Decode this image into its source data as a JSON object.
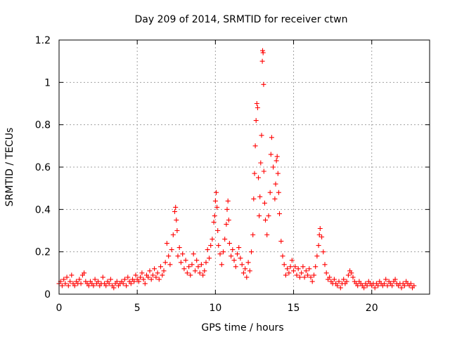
{
  "chart_data": {
    "type": "scatter",
    "title": "Day 209 of 2014, SRMTID for receiver ctwn",
    "xlabel": "GPS time / hours",
    "ylabel": "SRMTID / TECUs",
    "xlim": [
      0,
      23.7
    ],
    "ylim": [
      0,
      1.2
    ],
    "xticks": [
      0,
      5,
      10,
      15,
      20
    ],
    "xtick_labels": [
      "0",
      "5",
      "10",
      "15",
      "20"
    ],
    "yticks": [
      0,
      0.2,
      0.4,
      0.6,
      0.8,
      1.0,
      1.2
    ],
    "ytick_labels": [
      "0",
      "0.2",
      "0.4",
      "0.6",
      "0.8",
      "1",
      "1.2"
    ],
    "grid": true,
    "marker": "+",
    "series": [
      {
        "name": "SRMTID",
        "color": "#ff0000",
        "points": [
          [
            0.0,
            0.05
          ],
          [
            0.1,
            0.06
          ],
          [
            0.2,
            0.04
          ],
          [
            0.3,
            0.07
          ],
          [
            0.4,
            0.05
          ],
          [
            0.5,
            0.08
          ],
          [
            0.6,
            0.04
          ],
          [
            0.7,
            0.06
          ],
          [
            0.8,
            0.09
          ],
          [
            0.9,
            0.05
          ],
          [
            1.0,
            0.04
          ],
          [
            1.1,
            0.06
          ],
          [
            1.2,
            0.05
          ],
          [
            1.3,
            0.07
          ],
          [
            1.4,
            0.05
          ],
          [
            1.5,
            0.09
          ],
          [
            1.6,
            0.1
          ],
          [
            1.7,
            0.06
          ],
          [
            1.8,
            0.05
          ],
          [
            1.9,
            0.04
          ],
          [
            2.0,
            0.06
          ],
          [
            2.1,
            0.05
          ],
          [
            2.2,
            0.04
          ],
          [
            2.3,
            0.07
          ],
          [
            2.4,
            0.05
          ],
          [
            2.5,
            0.06
          ],
          [
            2.6,
            0.04
          ],
          [
            2.7,
            0.05
          ],
          [
            2.8,
            0.08
          ],
          [
            2.9,
            0.05
          ],
          [
            3.0,
            0.04
          ],
          [
            3.1,
            0.06
          ],
          [
            3.2,
            0.05
          ],
          [
            3.3,
            0.07
          ],
          [
            3.4,
            0.04
          ],
          [
            3.5,
            0.03
          ],
          [
            3.6,
            0.05
          ],
          [
            3.7,
            0.06
          ],
          [
            3.8,
            0.04
          ],
          [
            3.9,
            0.05
          ],
          [
            4.0,
            0.06
          ],
          [
            4.1,
            0.05
          ],
          [
            4.2,
            0.07
          ],
          [
            4.3,
            0.04
          ],
          [
            4.4,
            0.08
          ],
          [
            4.5,
            0.06
          ],
          [
            4.6,
            0.05
          ],
          [
            4.7,
            0.07
          ],
          [
            4.8,
            0.06
          ],
          [
            4.9,
            0.09
          ],
          [
            5.0,
            0.07
          ],
          [
            5.1,
            0.06
          ],
          [
            5.2,
            0.08
          ],
          [
            5.3,
            0.1
          ],
          [
            5.4,
            0.07
          ],
          [
            5.5,
            0.05
          ],
          [
            5.6,
            0.09
          ],
          [
            5.7,
            0.08
          ],
          [
            5.8,
            0.11
          ],
          [
            5.9,
            0.07
          ],
          [
            6.0,
            0.09
          ],
          [
            6.1,
            0.12
          ],
          [
            6.2,
            0.08
          ],
          [
            6.3,
            0.1
          ],
          [
            6.4,
            0.07
          ],
          [
            6.5,
            0.13
          ],
          [
            6.6,
            0.09
          ],
          [
            6.7,
            0.11
          ],
          [
            6.8,
            0.15
          ],
          [
            6.9,
            0.24
          ],
          [
            7.0,
            0.18
          ],
          [
            7.1,
            0.14
          ],
          [
            7.2,
            0.21
          ],
          [
            7.3,
            0.28
          ],
          [
            7.4,
            0.39
          ],
          [
            7.45,
            0.41
          ],
          [
            7.5,
            0.35
          ],
          [
            7.55,
            0.3
          ],
          [
            7.6,
            0.18
          ],
          [
            7.7,
            0.22
          ],
          [
            7.8,
            0.15
          ],
          [
            7.9,
            0.19
          ],
          [
            8.0,
            0.12
          ],
          [
            8.1,
            0.16
          ],
          [
            8.2,
            0.1
          ],
          [
            8.3,
            0.13
          ],
          [
            8.4,
            0.09
          ],
          [
            8.5,
            0.14
          ],
          [
            8.6,
            0.19
          ],
          [
            8.7,
            0.11
          ],
          [
            8.8,
            0.16
          ],
          [
            8.9,
            0.13
          ],
          [
            9.0,
            0.1
          ],
          [
            9.1,
            0.14
          ],
          [
            9.2,
            0.09
          ],
          [
            9.3,
            0.11
          ],
          [
            9.4,
            0.15
          ],
          [
            9.5,
            0.21
          ],
          [
            9.6,
            0.17
          ],
          [
            9.7,
            0.23
          ],
          [
            9.8,
            0.26
          ],
          [
            9.9,
            0.34
          ],
          [
            9.95,
            0.37
          ],
          [
            10.0,
            0.44
          ],
          [
            10.05,
            0.48
          ],
          [
            10.1,
            0.41
          ],
          [
            10.15,
            0.3
          ],
          [
            10.2,
            0.23
          ],
          [
            10.3,
            0.19
          ],
          [
            10.4,
            0.14
          ],
          [
            10.5,
            0.2
          ],
          [
            10.6,
            0.26
          ],
          [
            10.7,
            0.33
          ],
          [
            10.75,
            0.4
          ],
          [
            10.8,
            0.44
          ],
          [
            10.85,
            0.35
          ],
          [
            10.9,
            0.24
          ],
          [
            11.0,
            0.18
          ],
          [
            11.1,
            0.21
          ],
          [
            11.2,
            0.16
          ],
          [
            11.3,
            0.13
          ],
          [
            11.4,
            0.19
          ],
          [
            11.5,
            0.22
          ],
          [
            11.6,
            0.17
          ],
          [
            11.7,
            0.14
          ],
          [
            11.8,
            0.1
          ],
          [
            11.9,
            0.12
          ],
          [
            12.0,
            0.08
          ],
          [
            12.1,
            0.15
          ],
          [
            12.2,
            0.11
          ],
          [
            12.3,
            0.2
          ],
          [
            12.4,
            0.28
          ],
          [
            12.45,
            0.45
          ],
          [
            12.5,
            0.57
          ],
          [
            12.55,
            0.7
          ],
          [
            12.6,
            0.82
          ],
          [
            12.65,
            0.9
          ],
          [
            12.7,
            0.88
          ],
          [
            12.75,
            0.55
          ],
          [
            12.8,
            0.37
          ],
          [
            12.85,
            0.46
          ],
          [
            12.9,
            0.62
          ],
          [
            12.95,
            0.75
          ],
          [
            13.0,
            1.1
          ],
          [
            13.02,
            1.15
          ],
          [
            13.05,
            1.14
          ],
          [
            13.08,
            0.99
          ],
          [
            13.1,
            0.58
          ],
          [
            13.15,
            0.43
          ],
          [
            13.2,
            0.35
          ],
          [
            13.3,
            0.28
          ],
          [
            13.4,
            0.37
          ],
          [
            13.5,
            0.48
          ],
          [
            13.55,
            0.66
          ],
          [
            13.6,
            0.74
          ],
          [
            13.7,
            0.6
          ],
          [
            13.8,
            0.45
          ],
          [
            13.85,
            0.52
          ],
          [
            13.9,
            0.63
          ],
          [
            13.95,
            0.65
          ],
          [
            14.0,
            0.57
          ],
          [
            14.05,
            0.48
          ],
          [
            14.1,
            0.38
          ],
          [
            14.2,
            0.25
          ],
          [
            14.3,
            0.18
          ],
          [
            14.4,
            0.14
          ],
          [
            14.5,
            0.09
          ],
          [
            14.6,
            0.12
          ],
          [
            14.7,
            0.1
          ],
          [
            14.8,
            0.13
          ],
          [
            14.9,
            0.16
          ],
          [
            15.0,
            0.11
          ],
          [
            15.1,
            0.13
          ],
          [
            15.2,
            0.09
          ],
          [
            15.3,
            0.12
          ],
          [
            15.4,
            0.08
          ],
          [
            15.5,
            0.1
          ],
          [
            15.6,
            0.13
          ],
          [
            15.7,
            0.08
          ],
          [
            15.8,
            0.11
          ],
          [
            15.9,
            0.09
          ],
          [
            16.0,
            0.12
          ],
          [
            16.1,
            0.08
          ],
          [
            16.2,
            0.06
          ],
          [
            16.3,
            0.09
          ],
          [
            16.4,
            0.13
          ],
          [
            16.5,
            0.18
          ],
          [
            16.6,
            0.23
          ],
          [
            16.65,
            0.28
          ],
          [
            16.7,
            0.31
          ],
          [
            16.8,
            0.27
          ],
          [
            16.9,
            0.2
          ],
          [
            17.0,
            0.14
          ],
          [
            17.1,
            0.1
          ],
          [
            17.2,
            0.07
          ],
          [
            17.3,
            0.08
          ],
          [
            17.4,
            0.06
          ],
          [
            17.5,
            0.05
          ],
          [
            17.6,
            0.07
          ],
          [
            17.7,
            0.05
          ],
          [
            17.8,
            0.04
          ],
          [
            17.9,
            0.06
          ],
          [
            18.0,
            0.03
          ],
          [
            18.1,
            0.05
          ],
          [
            18.2,
            0.07
          ],
          [
            18.3,
            0.05
          ],
          [
            18.4,
            0.06
          ],
          [
            18.5,
            0.09
          ],
          [
            18.6,
            0.11
          ],
          [
            18.7,
            0.1
          ],
          [
            18.8,
            0.08
          ],
          [
            18.9,
            0.06
          ],
          [
            19.0,
            0.05
          ],
          [
            19.1,
            0.04
          ],
          [
            19.2,
            0.06
          ],
          [
            19.3,
            0.05
          ],
          [
            19.4,
            0.04
          ],
          [
            19.5,
            0.03
          ],
          [
            19.6,
            0.05
          ],
          [
            19.7,
            0.04
          ],
          [
            19.8,
            0.06
          ],
          [
            19.9,
            0.05
          ],
          [
            20.0,
            0.04
          ],
          [
            20.1,
            0.05
          ],
          [
            20.2,
            0.03
          ],
          [
            20.3,
            0.05
          ],
          [
            20.4,
            0.04
          ],
          [
            20.5,
            0.06
          ],
          [
            20.6,
            0.05
          ],
          [
            20.7,
            0.04
          ],
          [
            20.8,
            0.05
          ],
          [
            20.9,
            0.07
          ],
          [
            21.0,
            0.04
          ],
          [
            21.1,
            0.06
          ],
          [
            21.2,
            0.05
          ],
          [
            21.3,
            0.04
          ],
          [
            21.4,
            0.06
          ],
          [
            21.5,
            0.07
          ],
          [
            21.6,
            0.05
          ],
          [
            21.7,
            0.04
          ],
          [
            21.8,
            0.05
          ],
          [
            21.9,
            0.03
          ],
          [
            22.0,
            0.05
          ],
          [
            22.1,
            0.04
          ],
          [
            22.2,
            0.06
          ],
          [
            22.3,
            0.05
          ],
          [
            22.4,
            0.04
          ],
          [
            22.5,
            0.05
          ],
          [
            22.6,
            0.03
          ],
          [
            22.7,
            0.04
          ]
        ]
      }
    ]
  }
}
